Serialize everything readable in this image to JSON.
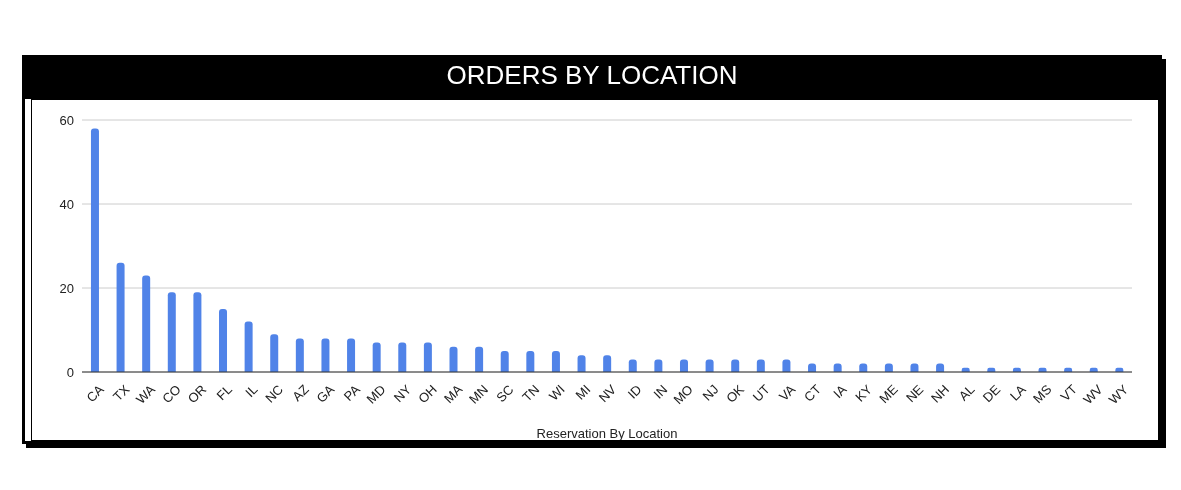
{
  "chart_data": {
    "type": "bar",
    "title": "ORDERS BY LOCATION",
    "xlabel": "Reservation By Location",
    "categories": [
      "CA",
      "TX",
      "WA",
      "CO",
      "OR",
      "FL",
      "IL",
      "NC",
      "AZ",
      "GA",
      "PA",
      "MD",
      "NY",
      "OH",
      "MA",
      "MN",
      "SC",
      "TN",
      "WI",
      "MI",
      "NV",
      "ID",
      "IN",
      "MO",
      "NJ",
      "OK",
      "UT",
      "VA",
      "CT",
      "IA",
      "KY",
      "ME",
      "NE",
      "NH",
      "AL",
      "DE",
      "LA",
      "MS",
      "VT",
      "WV",
      "WY"
    ],
    "values": [
      58,
      26,
      23,
      19,
      19,
      15,
      12,
      9,
      8,
      8,
      8,
      7,
      7,
      7,
      6,
      6,
      5,
      5,
      5,
      4,
      4,
      3,
      3,
      3,
      3,
      3,
      3,
      3,
      2,
      2,
      2,
      2,
      2,
      2,
      1,
      1,
      1,
      1,
      1,
      1,
      1
    ],
    "color": "#5083e8",
    "ylim": [
      0,
      60
    ],
    "yticks": [
      0,
      20,
      40,
      60
    ],
    "grid": "y",
    "legend": false
  }
}
